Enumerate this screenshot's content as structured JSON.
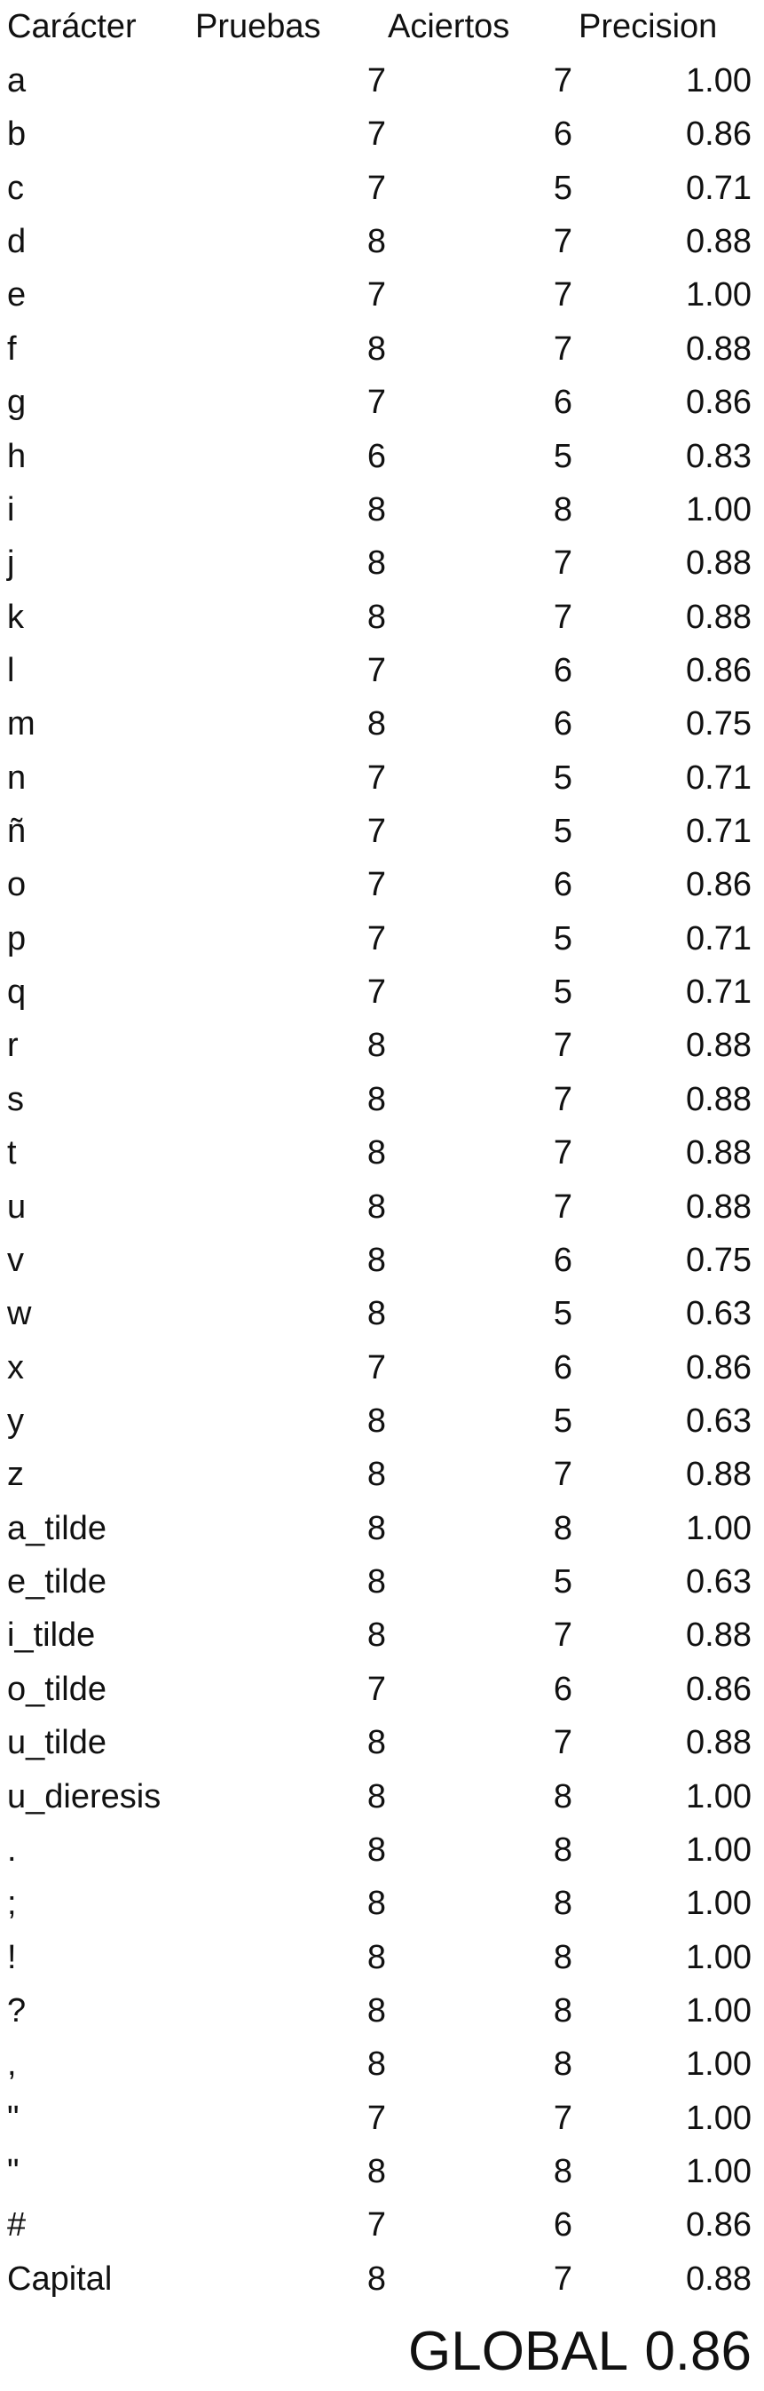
{
  "table": {
    "headers": {
      "character": "Carácter",
      "trials": "Pruebas",
      "hits": "Aciertos",
      "precision": "Precision"
    },
    "rows": [
      {
        "character": "a",
        "trials": "7",
        "hits": "7",
        "precision": "1.00"
      },
      {
        "character": "b",
        "trials": "7",
        "hits": "6",
        "precision": "0.86"
      },
      {
        "character": "c",
        "trials": "7",
        "hits": "5",
        "precision": "0.71"
      },
      {
        "character": "d",
        "trials": "8",
        "hits": "7",
        "precision": "0.88"
      },
      {
        "character": "e",
        "trials": "7",
        "hits": "7",
        "precision": "1.00"
      },
      {
        "character": "f",
        "trials": "8",
        "hits": "7",
        "precision": "0.88"
      },
      {
        "character": "g",
        "trials": "7",
        "hits": "6",
        "precision": "0.86"
      },
      {
        "character": "h",
        "trials": "6",
        "hits": "5",
        "precision": "0.83"
      },
      {
        "character": "i",
        "trials": "8",
        "hits": "8",
        "precision": "1.00"
      },
      {
        "character": "j",
        "trials": "8",
        "hits": "7",
        "precision": "0.88"
      },
      {
        "character": "k",
        "trials": "8",
        "hits": "7",
        "precision": "0.88"
      },
      {
        "character": "l",
        "trials": "7",
        "hits": "6",
        "precision": "0.86"
      },
      {
        "character": "m",
        "trials": "8",
        "hits": "6",
        "precision": "0.75"
      },
      {
        "character": "n",
        "trials": "7",
        "hits": "5",
        "precision": "0.71"
      },
      {
        "character": "ñ",
        "trials": "7",
        "hits": "5",
        "precision": "0.71"
      },
      {
        "character": "o",
        "trials": "7",
        "hits": "6",
        "precision": "0.86"
      },
      {
        "character": "p",
        "trials": "7",
        "hits": "5",
        "precision": "0.71"
      },
      {
        "character": "q",
        "trials": "7",
        "hits": "5",
        "precision": "0.71"
      },
      {
        "character": "r",
        "trials": "8",
        "hits": "7",
        "precision": "0.88"
      },
      {
        "character": "s",
        "trials": "8",
        "hits": "7",
        "precision": "0.88"
      },
      {
        "character": "t",
        "trials": "8",
        "hits": "7",
        "precision": "0.88"
      },
      {
        "character": "u",
        "trials": "8",
        "hits": "7",
        "precision": "0.88"
      },
      {
        "character": "v",
        "trials": "8",
        "hits": "6",
        "precision": "0.75"
      },
      {
        "character": "w",
        "trials": "8",
        "hits": "5",
        "precision": "0.63"
      },
      {
        "character": "x",
        "trials": "7",
        "hits": "6",
        "precision": "0.86"
      },
      {
        "character": "y",
        "trials": "8",
        "hits": "5",
        "precision": "0.63"
      },
      {
        "character": "z",
        "trials": "8",
        "hits": "7",
        "precision": "0.88"
      },
      {
        "character": "a_tilde",
        "trials": "8",
        "hits": "8",
        "precision": "1.00"
      },
      {
        "character": "e_tilde",
        "trials": "8",
        "hits": "5",
        "precision": "0.63"
      },
      {
        "character": "i_tilde",
        "trials": "8",
        "hits": "7",
        "precision": "0.88"
      },
      {
        "character": "o_tilde",
        "trials": "7",
        "hits": "6",
        "precision": "0.86"
      },
      {
        "character": "u_tilde",
        "trials": "8",
        "hits": "7",
        "precision": "0.88"
      },
      {
        "character": "u_dieresis",
        "trials": "8",
        "hits": "8",
        "precision": "1.00"
      },
      {
        "character": ".",
        "trials": "8",
        "hits": "8",
        "precision": "1.00"
      },
      {
        "character": ";",
        "trials": "8",
        "hits": "8",
        "precision": "1.00"
      },
      {
        "character": "!",
        "trials": "8",
        "hits": "8",
        "precision": "1.00"
      },
      {
        "character": "?",
        "trials": "8",
        "hits": "8",
        "precision": "1.00"
      },
      {
        "character": ",",
        "trials": "8",
        "hits": "8",
        "precision": "1.00"
      },
      {
        "character": "\"",
        "trials": "7",
        "hits": "7",
        "precision": "1.00"
      },
      {
        "character": "\"",
        "trials": "8",
        "hits": "8",
        "precision": "1.00"
      },
      {
        "character": "#",
        "trials": "7",
        "hits": "6",
        "precision": "0.86"
      },
      {
        "character": "Capital",
        "trials": "8",
        "hits": "7",
        "precision": "0.88"
      }
    ]
  },
  "summary": {
    "label": "GLOBAL",
    "value": "0.86"
  }
}
